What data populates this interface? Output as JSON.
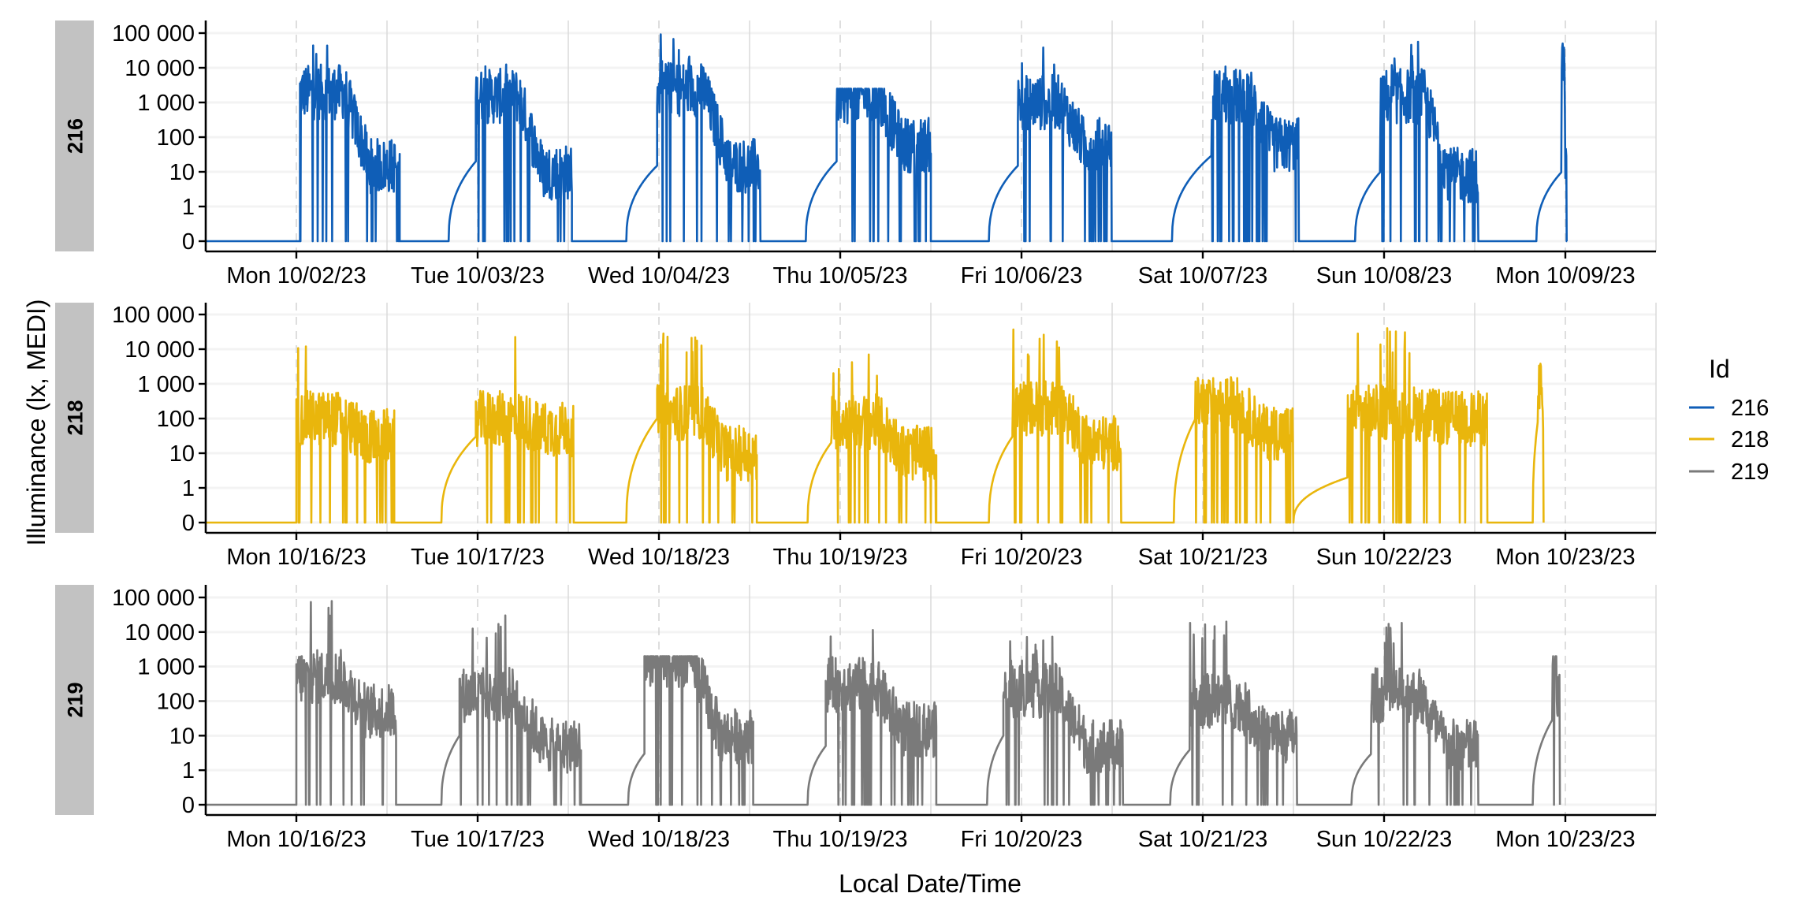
{
  "chart_data": {
    "type": "line",
    "title": "",
    "xlabel": "Local Date/Time",
    "ylabel": "Illuminance (lx, MEDI)",
    "y_scale": "symlog (0 shown one decade below 1)",
    "y_ticks": [
      0,
      1,
      10,
      100,
      1000,
      10000,
      100000
    ],
    "y_tick_labels": [
      "0",
      "1",
      "10",
      "100",
      "1 000",
      "10 000",
      "100 000"
    ],
    "x_range_days": [
      -0.5,
      7.5
    ],
    "grid": true,
    "legend": {
      "title": "Id",
      "placement": "right",
      "entries": [
        {
          "label": "216",
          "color": "#0F5EB7"
        },
        {
          "label": "218",
          "color": "#E9B60C"
        },
        {
          "label": "219",
          "color": "#7A7A7A"
        }
      ]
    },
    "facets": [
      {
        "id": "216",
        "color": "#0F5EB7",
        "x_tick_labels": [
          "Mon 10/02/23",
          "Tue 10/03/23",
          "Wed 10/04/23",
          "Thu 10/05/23",
          "Fri 10/06/23",
          "Sat 10/07/23",
          "Sun 10/08/23",
          "Mon 10/09/23"
        ],
        "days": [
          {
            "start": 0.02,
            "wake": 0.02,
            "onset_lux": 110,
            "day_lux": 2000,
            "peak_lux": 70000,
            "evening_lux": 15,
            "sleep": 0.57,
            "pre_dawn_lux": 0
          },
          {
            "start": 0.84,
            "wake": 0.99,
            "onset_lux": 20,
            "day_lux": 1500,
            "peak_lux": 22000,
            "evening_lux": 10,
            "sleep": 1.52,
            "pre_dawn_lux": 0
          },
          {
            "start": 1.82,
            "wake": 1.99,
            "onset_lux": 15,
            "day_lux": 2500,
            "peak_lux": 100000,
            "evening_lux": 15,
            "sleep": 2.56,
            "pre_dawn_lux": 0
          },
          {
            "start": 2.81,
            "wake": 2.98,
            "onset_lux": 20,
            "day_lux": 1500,
            "peak_lux": 2500,
            "evening_lux": 60,
            "sleep": 3.5,
            "pre_dawn_lux": 0
          },
          {
            "start": 3.82,
            "wake": 3.98,
            "onset_lux": 15,
            "day_lux": 1000,
            "peak_lux": 40000,
            "evening_lux": 60,
            "sleep": 4.5,
            "pre_dawn_lux": 0
          },
          {
            "start": 4.83,
            "wake": 5.05,
            "onset_lux": 30,
            "day_lux": 1500,
            "peak_lux": 22000,
            "evening_lux": 60,
            "sleep": 5.53,
            "pre_dawn_lux": 0
          },
          {
            "start": 5.84,
            "wake": 5.98,
            "onset_lux": 10,
            "day_lux": 1500,
            "peak_lux": 70000,
            "evening_lux": 8,
            "sleep": 6.52,
            "pre_dawn_lux": 0
          },
          {
            "start": 6.84,
            "wake": 6.98,
            "onset_lux": 10,
            "day_lux": 20000,
            "peak_lux": 50000,
            "evening_lux": 10,
            "sleep": 7.01,
            "pre_dawn_lux": 0
          }
        ]
      },
      {
        "id": "218",
        "color": "#E9B60C",
        "x_tick_labels": [
          "Mon 10/16/23",
          "Tue 10/17/23",
          "Wed 10/18/23",
          "Thu 10/19/23",
          "Fri 10/20/23",
          "Sat 10/21/23",
          "Sun 10/22/23",
          "Mon 10/23/23"
        ],
        "days": [
          {
            "start": 0.0,
            "wake": 0.0,
            "onset_lux": 200,
            "day_lux": 100,
            "peak_lux": 50000,
            "evening_lux": 30,
            "sleep": 0.54,
            "pre_dawn_lux": 0
          },
          {
            "start": 0.8,
            "wake": 0.99,
            "onset_lux": 30,
            "day_lux": 100,
            "peak_lux": 40000,
            "evening_lux": 50,
            "sleep": 1.53,
            "pre_dawn_lux": 0
          },
          {
            "start": 1.82,
            "wake": 1.99,
            "onset_lux": 100,
            "day_lux": 150,
            "peak_lux": 30000,
            "evening_lux": 10,
            "sleep": 2.54,
            "pre_dawn_lux": 0
          },
          {
            "start": 2.82,
            "wake": 2.95,
            "onset_lux": 20,
            "day_lux": 80,
            "peak_lux": 8000,
            "evening_lux": 10,
            "sleep": 3.53,
            "pre_dawn_lux": 0
          },
          {
            "start": 3.82,
            "wake": 3.95,
            "onset_lux": 30,
            "day_lux": 200,
            "peak_lux": 40000,
            "evening_lux": 20,
            "sleep": 4.55,
            "pre_dawn_lux": 0
          },
          {
            "start": 4.84,
            "wake": 4.96,
            "onset_lux": 100,
            "day_lux": 250,
            "peak_lux": 2000,
            "evening_lux": 40,
            "sleep": 5.5,
            "pre_dawn_lux": 0
          },
          {
            "start": 5.5,
            "wake": 5.8,
            "onset_lux": 2,
            "day_lux": 150,
            "peak_lux": 45000,
            "evening_lux": 100,
            "sleep": 6.57,
            "pre_dawn_lux": 0
          },
          {
            "start": 6.82,
            "wake": 6.85,
            "onset_lux": 100,
            "day_lux": 1000,
            "peak_lux": 4500,
            "evening_lux": 100,
            "sleep": 6.88,
            "pre_dawn_lux": 0
          }
        ]
      },
      {
        "id": "219",
        "color": "#7A7A7A",
        "x_tick_labels": [
          "Mon 10/16/23",
          "Tue 10/17/23",
          "Wed 10/18/23",
          "Thu 10/19/23",
          "Fri 10/20/23",
          "Sat 10/21/23",
          "Sun 10/22/23",
          "Mon 10/23/23"
        ],
        "days": [
          {
            "start": 0.0,
            "wake": 0.0,
            "onset_lux": 400,
            "day_lux": 500,
            "peak_lux": 90000,
            "evening_lux": 50,
            "sleep": 0.55,
            "pre_dawn_lux": 0
          },
          {
            "start": 0.8,
            "wake": 0.9,
            "onset_lux": 10,
            "day_lux": 150,
            "peak_lux": 40000,
            "evening_lux": 5,
            "sleep": 1.57,
            "pre_dawn_lux": 0
          },
          {
            "start": 1.83,
            "wake": 1.92,
            "onset_lux": 3,
            "day_lux": 1500,
            "peak_lux": 2000,
            "evening_lux": 10,
            "sleep": 2.52,
            "pre_dawn_lux": 0
          },
          {
            "start": 2.82,
            "wake": 2.92,
            "onset_lux": 5,
            "day_lux": 300,
            "peak_lux": 20000,
            "evening_lux": 15,
            "sleep": 3.53,
            "pre_dawn_lux": 0
          },
          {
            "start": 3.81,
            "wake": 3.9,
            "onset_lux": 10,
            "day_lux": 200,
            "peak_lux": 9000,
            "evening_lux": 5,
            "sleep": 4.56,
            "pre_dawn_lux": 0
          },
          {
            "start": 4.82,
            "wake": 4.93,
            "onset_lux": 4,
            "day_lux": 100,
            "peak_lux": 30000,
            "evening_lux": 10,
            "sleep": 5.52,
            "pre_dawn_lux": 0
          },
          {
            "start": 5.82,
            "wake": 5.93,
            "onset_lux": 3,
            "day_lux": 150,
            "peak_lux": 25000,
            "evening_lux": 5,
            "sleep": 6.52,
            "pre_dawn_lux": 0
          },
          {
            "start": 6.82,
            "wake": 6.93,
            "onset_lux": 30,
            "day_lux": 1000,
            "peak_lux": 2000,
            "evening_lux": 100,
            "sleep": 6.97,
            "pre_dawn_lux": 0
          }
        ]
      }
    ]
  }
}
